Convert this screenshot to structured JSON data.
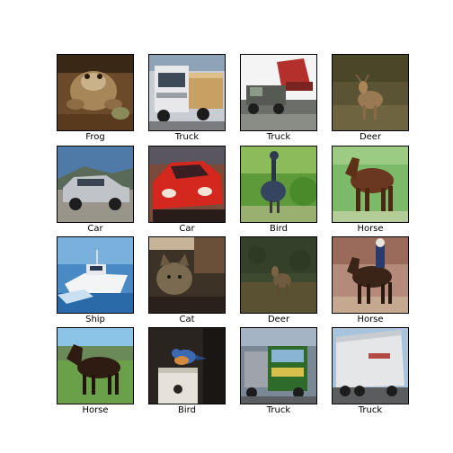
{
  "images": [
    {
      "label": "Frog"
    },
    {
      "label": "Truck"
    },
    {
      "label": "Truck"
    },
    {
      "label": "Deer"
    },
    {
      "label": "Car"
    },
    {
      "label": "Car"
    },
    {
      "label": "Bird"
    },
    {
      "label": "Horse"
    },
    {
      "label": "Ship"
    },
    {
      "label": "Cat"
    },
    {
      "label": "Deer"
    },
    {
      "label": "Horse"
    },
    {
      "label": "Horse"
    },
    {
      "label": "Bird"
    },
    {
      "label": "Truck"
    },
    {
      "label": "Truck"
    }
  ]
}
